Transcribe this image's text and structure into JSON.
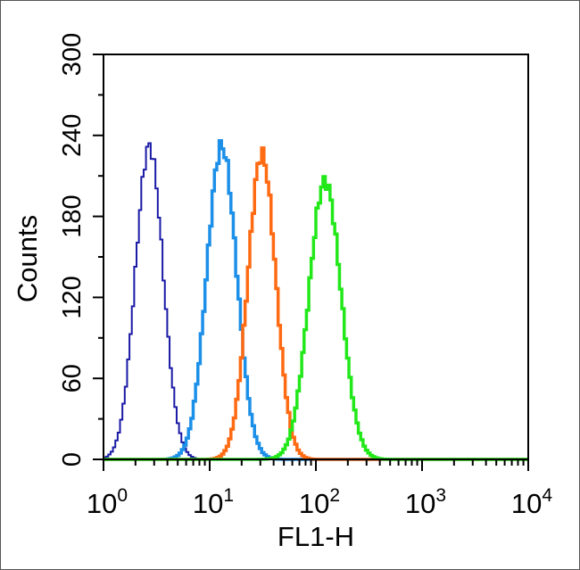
{
  "chart_data": {
    "type": "histogram",
    "xlabel": "FL1-H",
    "ylabel": "Counts",
    "x_scale": "log",
    "xlim": [
      1,
      10000
    ],
    "ylim": [
      0,
      300
    ],
    "x_ticks": [
      {
        "base": "10",
        "exp": "0",
        "value": 1
      },
      {
        "base": "10",
        "exp": "1",
        "value": 10
      },
      {
        "base": "10",
        "exp": "2",
        "value": 100
      },
      {
        "base": "10",
        "exp": "3",
        "value": 1000
      },
      {
        "base": "10",
        "exp": "4",
        "value": 10000
      }
    ],
    "y_ticks": [
      "0",
      "60",
      "120",
      "180",
      "240",
      "300"
    ],
    "series": [
      {
        "color": "#1a1aa6",
        "line_width": 2,
        "peak_x": 2.7,
        "peak_y": 232,
        "sigma_decades": 0.13
      },
      {
        "color": "#1c8fe8",
        "line_width": 3.5,
        "peak_x": 13,
        "peak_y": 232,
        "sigma_decades": 0.14
      },
      {
        "color": "#ff6a12",
        "line_width": 3.5,
        "peak_x": 31,
        "peak_y": 226,
        "sigma_decades": 0.13
      },
      {
        "color": "#22e81a",
        "line_width": 3.5,
        "peak_x": 122,
        "peak_y": 206,
        "sigma_decades": 0.15
      }
    ],
    "grid": false,
    "legend": "none"
  }
}
